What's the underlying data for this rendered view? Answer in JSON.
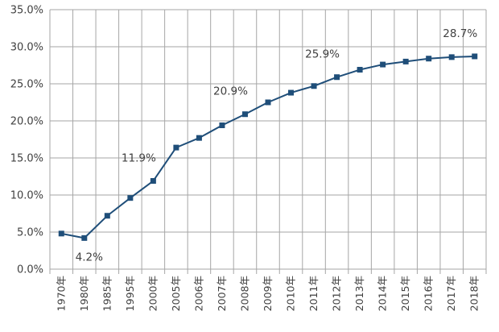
{
  "chart_data": {
    "type": "line",
    "title": "",
    "xlabel": "",
    "ylabel": "",
    "categories": [
      "1970年",
      "1980年",
      "1985年",
      "1995年",
      "2000年",
      "2005年",
      "2006年",
      "2007年",
      "2008年",
      "2009年",
      "2010年",
      "2011年",
      "2012年",
      "2013年",
      "2014年",
      "2015年",
      "2016年",
      "2017年",
      "2018年"
    ],
    "series": [
      {
        "values": [
          4.8,
          4.2,
          7.2,
          9.6,
          11.9,
          16.4,
          17.7,
          19.4,
          20.9,
          22.5,
          23.8,
          24.7,
          25.9,
          26.9,
          27.6,
          28.0,
          28.4,
          28.6,
          28.7
        ]
      }
    ],
    "ylim": [
      0,
      35
    ],
    "yticks": [
      0,
      5,
      10,
      15,
      20,
      25,
      30,
      35
    ],
    "ytick_labels": [
      "0.0%",
      "5.0%",
      "10.0%",
      "15.0%",
      "20.0%",
      "25.0%",
      "30.0%",
      "35.0%"
    ],
    "data_labels": [
      {
        "index": 1,
        "text": "4.2%",
        "position": "below"
      },
      {
        "index": 4,
        "text": "11.9%",
        "position": "above-left"
      },
      {
        "index": 8,
        "text": "20.9%",
        "position": "above-left"
      },
      {
        "index": 12,
        "text": "25.9%",
        "position": "above-left"
      },
      {
        "index": 18,
        "text": "28.7%",
        "position": "above-left"
      }
    ],
    "grid": true,
    "line_color": "#1f4e79",
    "marker_color": "#1f4e79",
    "grid_color": "#a6a6a6"
  }
}
